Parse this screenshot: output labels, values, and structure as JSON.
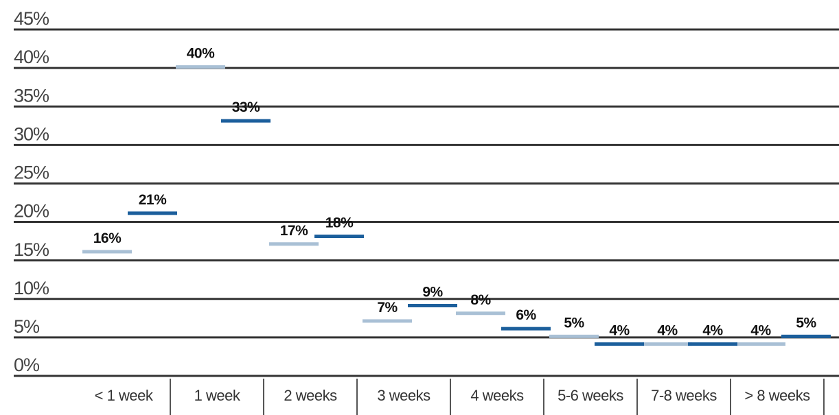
{
  "chart_data": {
    "type": "pictograph-bar",
    "categories": [
      "< 1 week",
      "1 week",
      "2 weeks",
      "3 weeks",
      "4 weeks",
      "5-6 weeks",
      "7-8 weeks",
      "> 8 weeks"
    ],
    "series": [
      {
        "color": "#a9c0d5",
        "values": [
          16,
          40,
          17,
          7,
          8,
          5,
          4,
          4
        ],
        "value_labels": [
          "16%",
          "40%",
          "17%",
          "7%",
          "8%",
          "5%",
          "4%",
          "4%"
        ]
      },
      {
        "color": "#1c5f9c",
        "values": [
          21,
          33,
          18,
          9,
          6,
          4,
          4,
          5
        ],
        "value_labels": [
          "21%",
          "33%",
          "18%",
          "9%",
          "6%",
          "4%",
          "4%",
          "5%"
        ]
      }
    ],
    "ylim": [
      0,
      45
    ],
    "yticks": [
      {
        "value": 0,
        "label": "0%"
      },
      {
        "value": 5,
        "label": "5%"
      },
      {
        "value": 10,
        "label": "10%"
      },
      {
        "value": 15,
        "label": "15%"
      },
      {
        "value": 20,
        "label": "20%"
      },
      {
        "value": 25,
        "label": "25%"
      },
      {
        "value": 30,
        "label": "30%"
      },
      {
        "value": 35,
        "label": "35%"
      },
      {
        "value": 40,
        "label": "40%"
      },
      {
        "value": 45,
        "label": "45%"
      }
    ],
    "grid": true
  }
}
